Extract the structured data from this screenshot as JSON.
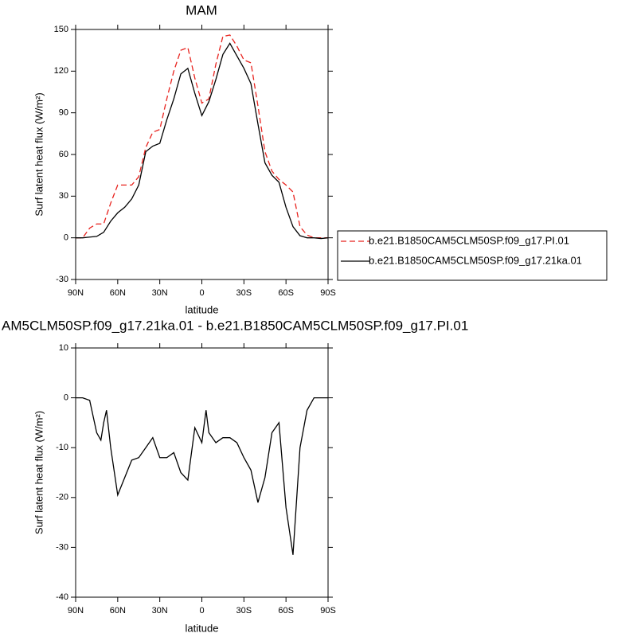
{
  "chart_data": [
    {
      "type": "line",
      "title": "MAM",
      "xlabel": "latitude",
      "ylabel": "Surf latent heat flux (W/m²)",
      "x": [
        90,
        85,
        80,
        75,
        70,
        65,
        60,
        55,
        50,
        45,
        40,
        35,
        30,
        25,
        20,
        15,
        10,
        5,
        0,
        -5,
        -10,
        -15,
        -20,
        -25,
        -30,
        -35,
        -40,
        -45,
        -50,
        -55,
        -60,
        -65,
        -70,
        -75,
        -80,
        -85,
        -90
      ],
      "series": [
        {
          "name": "b.e21.B1850CAM5CLM50SP.f09_g17.PI.01",
          "color": "#e8231e",
          "line_style": "dashed",
          "values": [
            0,
            0,
            7,
            10,
            10,
            25,
            38,
            38,
            38,
            44,
            65,
            76,
            78,
            100,
            120,
            135,
            137,
            115,
            97,
            100,
            125,
            145,
            146,
            138,
            128,
            126,
            95,
            62,
            48,
            42,
            38,
            33,
            8,
            2,
            0,
            0,
            0
          ]
        },
        {
          "name": "b.e21.B1850CAM5CLM50SP.f09_g17.21ka.01",
          "color": "#000000",
          "line_style": "solid",
          "values": [
            0,
            0,
            0.5,
            1,
            4,
            12,
            18,
            22,
            28,
            38,
            62,
            66,
            68,
            85,
            100,
            118,
            122,
            104,
            88,
            98,
            114,
            132,
            140,
            131,
            122,
            111,
            82,
            54,
            45,
            40,
            22,
            8,
            1.5,
            0,
            0,
            -0.5,
            0
          ]
        }
      ],
      "xlim": [
        90,
        -90
      ],
      "xticks": [
        {
          "value": 90,
          "label": "90N"
        },
        {
          "value": 60,
          "label": "60N"
        },
        {
          "value": 30,
          "label": "30N"
        },
        0,
        {
          "value": -30,
          "label": "30S"
        },
        {
          "value": -60,
          "label": "60S"
        },
        {
          "value": -90,
          "label": "90S"
        }
      ],
      "ylim": [
        -30,
        150
      ],
      "yticks": [
        -30,
        0,
        30,
        60,
        90,
        120,
        150
      ],
      "legend": "right"
    },
    {
      "type": "line",
      "title": "AM5CLM50SP.f09_g17.21ka.01 - b.e21.B1850CAM5CLM50SP.f09_g17.PI.01",
      "xlabel": "latitude",
      "ylabel": "Surf latent heat flux (W/m²)",
      "x": [
        90,
        85,
        80,
        75,
        72,
        70,
        68,
        65,
        60,
        55,
        50,
        45,
        40,
        35,
        30,
        25,
        20,
        15,
        10,
        5,
        0,
        -3,
        -5,
        -10,
        -15,
        -20,
        -25,
        -30,
        -35,
        -40,
        -45,
        -50,
        -55,
        -60,
        -65,
        -70,
        -75,
        -80,
        -85,
        -90
      ],
      "color": "#000000",
      "values": [
        0,
        0,
        -0.5,
        -7,
        -8.5,
        -5,
        -2.5,
        -10,
        -19.5,
        -16,
        -12.5,
        -12,
        -10,
        -8,
        -12,
        -12,
        -11,
        -15,
        -16.5,
        -6,
        -9,
        -2.5,
        -7,
        -9,
        -8,
        -8,
        -9,
        -12,
        -14.5,
        -21,
        -16,
        -7,
        -5,
        -22,
        -31.5,
        -10,
        -2.5,
        0,
        0,
        0
      ],
      "xlim": [
        90,
        -90
      ],
      "xticks": [
        {
          "value": 90,
          "label": "90N"
        },
        {
          "value": 60,
          "label": "60N"
        },
        {
          "value": 30,
          "label": "30N"
        },
        0,
        {
          "value": -30,
          "label": "30S"
        },
        {
          "value": -60,
          "label": "60S"
        },
        {
          "value": -90,
          "label": "90S"
        }
      ],
      "ylim": [
        -40,
        10
      ],
      "yticks": [
        -40,
        -30,
        -20,
        -10,
        0,
        10
      ]
    }
  ]
}
